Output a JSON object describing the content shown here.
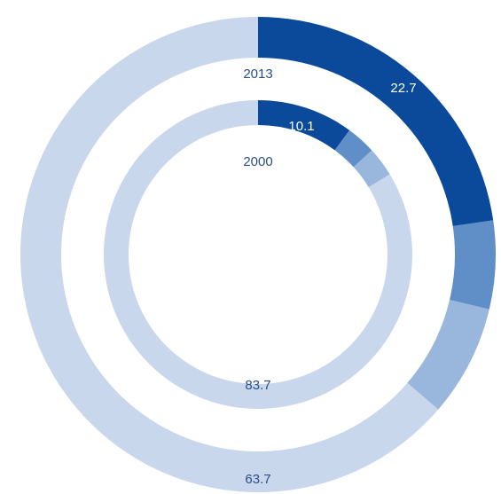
{
  "chart_data": [
    {
      "type": "pie",
      "title": "2013",
      "values": [
        22.7,
        6.0,
        7.6,
        63.7
      ],
      "colors": [
        "#0b4a9b",
        "#5f8fc6",
        "#99b6dd",
        "#c8d7ec"
      ]
    },
    {
      "type": "pie",
      "title": "2000",
      "values": [
        10.1,
        3.1,
        3.1,
        83.7
      ],
      "colors": [
        "#0b4a9b",
        "#5f8fc6",
        "#99b6dd",
        "#c8d7ec"
      ]
    }
  ]
}
